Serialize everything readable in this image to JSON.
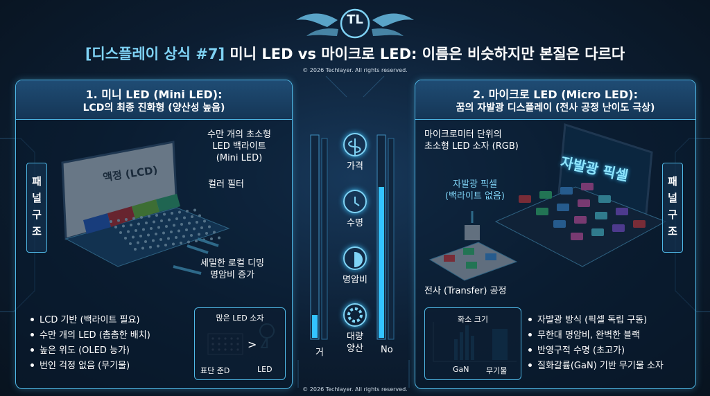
{
  "header": {
    "logo": "TL",
    "title_tag": "[디스플레이 상식 #7]",
    "title_text": "미니 LED vs 마이크로 LED: 이름은 비슷하지만 본질은 다르다",
    "copyright": "© 2026 Techlayer. All rights reserved."
  },
  "mini": {
    "title": "1. 미니 LED (Mini LED):",
    "subtitle": "LCD의 최종 진화형 (양산성 높음)",
    "side_label": "패\n널\n구\n조",
    "labels": {
      "lcd": "액정 (LCD)",
      "backlight": [
        "수만 개의 초소형",
        "LED 백라이트",
        "(Mini LED)"
      ],
      "filter": "컬러 필터",
      "dimming": [
        "세밀한 로컬 디밍",
        "명암비 증가"
      ]
    },
    "bullets": [
      "LCD 기반 (백라이트 필요)",
      "수만 개의 LED (촘촘한 배치)",
      "높은 위도 (OLED 능가)",
      "번인 걱정 없음 (무기물)"
    ],
    "inset": {
      "title": "많은 LED 소자",
      "left": "표단 준D",
      "sign": ">",
      "right": "LED"
    }
  },
  "center": {
    "items": [
      "가격",
      "수명",
      "명암비",
      "대량\n양산"
    ],
    "left_bottom": "거",
    "right_bottom": "No"
  },
  "micro": {
    "title": "2. 마이크로 LED (Micro LED):",
    "subtitle": "꿈의 자발광 디스플레이 (전사 공정 난이도 극상)",
    "side_label": "패\n널\n구\n조",
    "labels": {
      "chip": [
        "마이크로미터 단위의",
        "초소형 LED 소자 (RGB)"
      ],
      "screen": "자발광 픽셀",
      "pixel": [
        "자발광 픽셀",
        "(백라이트 없음)"
      ],
      "transfer": "전사 (Transfer) 공정"
    },
    "bullets": [
      "자발광 방식 (픽셀 독립 구동)",
      "무한대 명암비, 완벽한 블랙",
      "반영구적 수명 (초고가)",
      "질화갈륨(GaN) 기반 무기물 소자"
    ],
    "inset": {
      "title": "화소 크기",
      "left": "GaN",
      "right": "무기물"
    }
  },
  "footer": {
    "copyright": "© 2026 Techlayer. All rights reserved."
  }
}
